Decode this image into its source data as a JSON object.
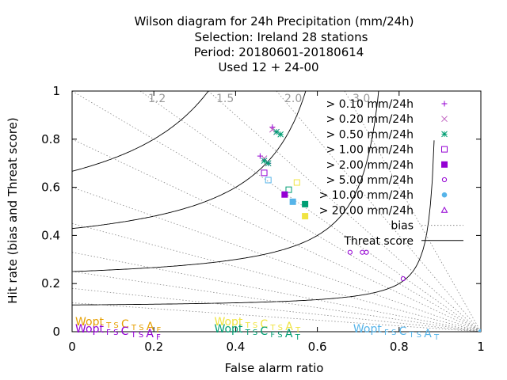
{
  "chart_data": {
    "type": "scatter",
    "title_lines": [
      "Wilson diagram  for 24h Precipitation (mm/24h)",
      "Selection: Ireland      28 stations",
      "Period: 20180601-20180614",
      "Used  12 + 24-00"
    ],
    "xlabel": "False alarm ratio",
    "ylabel": "Hit rate (bias and Threat score)",
    "xlim": [
      0,
      1
    ],
    "ylim": [
      0,
      1
    ],
    "xticks": [
      "0",
      "0.2",
      "0.4",
      "0.6",
      "0.8",
      "1"
    ],
    "yticks": [
      "0",
      "0.2",
      "0.4",
      "0.6",
      "0.8",
      "1"
    ],
    "bias_lines": [
      1.2,
      1.5,
      2.0,
      3.0
    ],
    "bias_labels": [
      "1.2",
      "1.5",
      "2.0",
      "3.0"
    ],
    "threat_score_lines": [
      0.1,
      0.2,
      0.3,
      0.4,
      0.5,
      0.6,
      0.7,
      0.8,
      0.9
    ],
    "legend_position": "top-right",
    "legend_bias_label": "bias",
    "legend_threat_label": "Threat score",
    "series": [
      {
        "name": "> 0.10 mm/24h",
        "color": "#9400d3",
        "marker": "plus",
        "points": [
          [
            0.49,
            0.85
          ],
          [
            0.5,
            0.83
          ],
          [
            0.46,
            0.73
          ],
          [
            0.48,
            0.7
          ]
        ]
      },
      {
        "name": "> 0.20 mm/24h",
        "color": "#bf5fbf",
        "marker": "x",
        "points": [
          [
            0.49,
            0.84
          ],
          [
            0.5,
            0.83
          ],
          [
            0.47,
            0.72
          ],
          [
            0.48,
            0.7
          ]
        ]
      },
      {
        "name": "> 0.50 mm/24h",
        "color": "#009e73",
        "marker": "star",
        "points": [
          [
            0.5,
            0.83
          ],
          [
            0.51,
            0.82
          ],
          [
            0.47,
            0.71
          ],
          [
            0.48,
            0.7
          ]
        ]
      },
      {
        "name": "> 1.00 mm/24h",
        "color": "#9400d3",
        "marker": "square-open",
        "points": [
          [
            0.47,
            0.66
          ],
          [
            0.48,
            0.63
          ],
          [
            0.53,
            0.59
          ],
          [
            0.55,
            0.62
          ]
        ]
      },
      {
        "name": "> 2.00 mm/24h",
        "color": "#9400d3",
        "marker": "square-filled",
        "points": [
          [
            0.52,
            0.57
          ],
          [
            0.54,
            0.54
          ],
          [
            0.57,
            0.53
          ],
          [
            0.57,
            0.48
          ]
        ]
      },
      {
        "name": "> 5.00 mm/24h",
        "color": "#9400d3",
        "marker": "circle-open",
        "points": [
          [
            0.68,
            0.33
          ],
          [
            0.71,
            0.33
          ],
          [
            0.72,
            0.33
          ],
          [
            0.81,
            0.22
          ]
        ]
      },
      {
        "name": "> 10.00 mm/24h",
        "color": "#56b4e9",
        "marker": "circle-filled",
        "points": [
          [
            1.0,
            0.0
          ]
        ]
      },
      {
        "name": "> 20.00 mm/24h",
        "color": "#9400d3",
        "marker": "triangle-open",
        "points": []
      }
    ],
    "wopt_annotations": [
      {
        "text": "Wopt",
        "sub": "T S",
        "t1": "C",
        "t1sub": "T S",
        "t2": "A",
        "t2sub": "F",
        "color": "#e69f00",
        "x": 0.0,
        "y": 0.04
      },
      {
        "text": "Wopt",
        "sub": "F S",
        "t1": "C",
        "t1sub": "T S",
        "t2": "A",
        "t2sub": "F",
        "color": "#9400d3",
        "x": 0.0,
        "y": 0.01
      },
      {
        "text": "Wopt",
        "sub": "T S",
        "t1": "C",
        "t1sub": "T S",
        "t2": "A",
        "t2sub": "T",
        "color": "#f0e442",
        "x": 0.34,
        "y": 0.04
      },
      {
        "text": "Wopt",
        "sub": "T S",
        "t1": "C",
        "t1sub": "F S",
        "t2": "A",
        "t2sub": "T",
        "color": "#009e73",
        "x": 0.34,
        "y": 0.01
      },
      {
        "text": "Wopt",
        "sub": "F S",
        "t1": "C",
        "t1sub": "T S",
        "t2": "A",
        "t2sub": "T",
        "color": "#56b4e9",
        "x": 0.68,
        "y": 0.01
      }
    ]
  }
}
